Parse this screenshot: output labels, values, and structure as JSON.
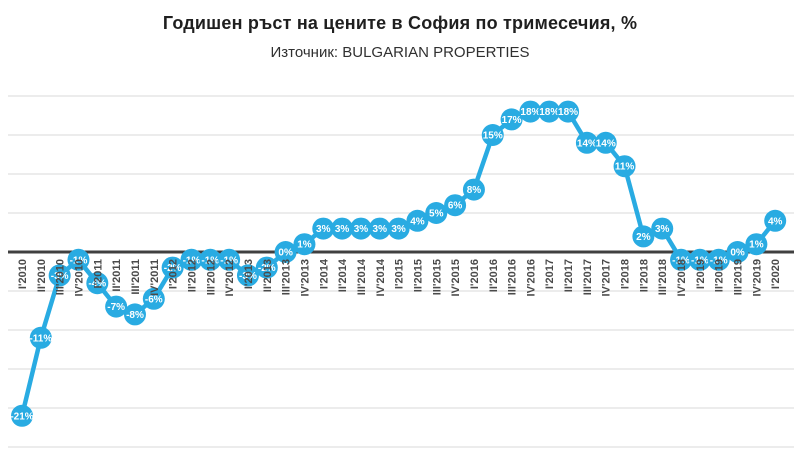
{
  "title": "Годишен ръст на цените в София по тримесечия, %",
  "subtitle": "Източник: BULGARIAN PROPERTIES",
  "chart_data": {
    "type": "line",
    "title": "Годишен ръст на цените в София по тримесечия, %",
    "subtitle": "Източник: BULGARIAN PROPERTIES",
    "unit": "%",
    "categories": [
      "I'2010",
      "II'2010",
      "III'2010",
      "IV'2010",
      "I'2011",
      "II'2011",
      "III'2011",
      "IV'2011",
      "I'2012",
      "II'2012",
      "III'2012",
      "IV'2012",
      "I'2013",
      "II'2013",
      "III'2013",
      "IV'2013",
      "I'2014",
      "II'2014",
      "III'2014",
      "IV'2014",
      "I'2015",
      "II'2015",
      "III'2015",
      "IV'2015",
      "I'2016",
      "II'2016",
      "III'2016",
      "IV'2016",
      "I'2017",
      "II'2017",
      "III'2017",
      "IV'2017",
      "I'2018",
      "II'2018",
      "III'2018",
      "IV'2018",
      "I'2019",
      "II'2019",
      "III'2019",
      "IV'2019",
      "I'2020"
    ],
    "values": [
      -21,
      -11,
      -3,
      -1,
      -4,
      -7,
      -8,
      -6,
      -2,
      -1,
      -1,
      -1,
      -3,
      -2,
      0,
      1,
      3,
      3,
      3,
      3,
      3,
      4,
      5,
      6,
      8,
      15,
      17,
      18,
      18,
      18,
      14,
      14,
      11,
      2,
      3,
      -1,
      -1,
      -1,
      0,
      1,
      4
    ],
    "ylim": [
      -25,
      20
    ],
    "gridline_step": 5,
    "grid": true,
    "legend": false,
    "data_labels_on_markers": true,
    "colors": {
      "series": "#29ABE2",
      "marker_label": "#FFFFFF",
      "gridline": "#D9D9D9",
      "zero_axis": "#404040",
      "axis_label": "#4A4A4A",
      "title": "#1F1F1F",
      "background": "#FFFFFF"
    }
  }
}
